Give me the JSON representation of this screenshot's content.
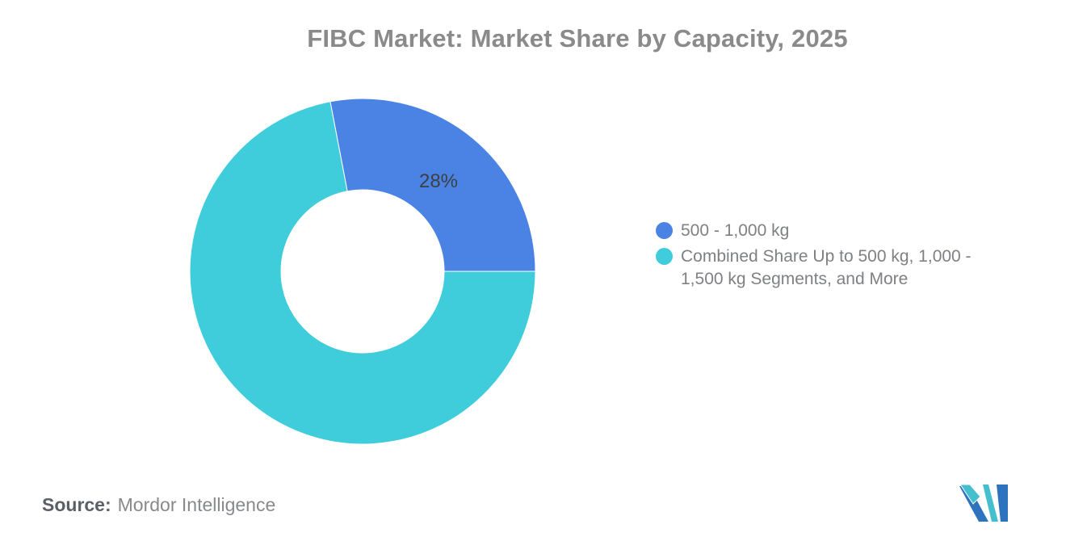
{
  "header": {
    "title": "FIBC Market: Market Share by Capacity, 2025"
  },
  "chart_data": {
    "type": "pie",
    "donut": true,
    "title": "FIBC Market: Market Share by Capacity, 2025",
    "categories": [
      "500 - 1,000 kg",
      "Combined Share Up to 500 kg, 1,000 - 1,500 kg Segments, and More"
    ],
    "values": [
      28,
      72
    ],
    "unit": "percent",
    "colors": [
      "#4a83e4",
      "#3fcddb"
    ],
    "data_labels": [
      "28%",
      ""
    ],
    "start_angle_deg": -10.8,
    "inner_radius_ratio": 0.47,
    "legend_position": "right-middle",
    "grid": false
  },
  "legend": {
    "items": [
      {
        "label": "500 - 1,000 kg",
        "color": "#4a83e4"
      },
      {
        "label": "Combined Share Up to 500 kg, 1,000 - 1,500 kg Segments, and More",
        "color": "#3fcddb"
      }
    ]
  },
  "footer": {
    "source_label": "Source:",
    "source_value": "Mordor Intelligence"
  },
  "logo": {
    "name": "Mordor Intelligence",
    "blue": "#2e73be",
    "teal": "#45becd"
  },
  "styles": {
    "title_color": "#8a8a8a",
    "legend_text_color": "#7e8084",
    "data_label_color": "#3c4043",
    "source_label_color": "#5c6064",
    "source_value_color": "#87898c",
    "background": "#ffffff"
  }
}
